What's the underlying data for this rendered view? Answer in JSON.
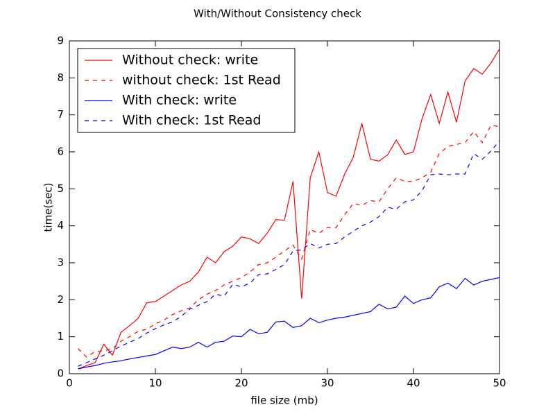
{
  "chart_data": {
    "type": "line",
    "title": "With/Without Consistency check",
    "xlabel": "file size (mb)",
    "ylabel": "time(sec)",
    "x": [
      1,
      2,
      3,
      4,
      5,
      6,
      7,
      8,
      9,
      10,
      11,
      12,
      13,
      14,
      15,
      16,
      17,
      18,
      19,
      20,
      21,
      22,
      23,
      24,
      25,
      26,
      27,
      28,
      29,
      30,
      31,
      32,
      33,
      34,
      35,
      36,
      37,
      38,
      39,
      40,
      41,
      42,
      43,
      44,
      45,
      46,
      47,
      48,
      49,
      50
    ],
    "xlim": [
      0,
      50
    ],
    "xticks": [
      0,
      10,
      20,
      30,
      40,
      50
    ],
    "ylim": [
      0,
      9
    ],
    "yticks": [
      0,
      1,
      2,
      3,
      4,
      5,
      6,
      7,
      8,
      9
    ],
    "legend": "upper left",
    "series": [
      {
        "name": "Without check: write",
        "color": "#ff0000",
        "style": "solid",
        "values": [
          0.13,
          0.22,
          0.3,
          0.8,
          0.5,
          1.12,
          1.3,
          1.5,
          1.92,
          1.95,
          2.1,
          2.25,
          2.4,
          2.5,
          2.75,
          3.15,
          3.0,
          3.3,
          3.45,
          3.7,
          3.65,
          3.52,
          3.8,
          4.17,
          4.15,
          5.2,
          2.03,
          5.3,
          6.0,
          4.9,
          4.8,
          5.4,
          5.85,
          6.77,
          5.8,
          5.75,
          5.92,
          6.32,
          5.93,
          6.0,
          6.9,
          7.55,
          6.77,
          7.62,
          6.8,
          7.92,
          8.25,
          8.1,
          8.4,
          8.78
        ]
      },
      {
        "name": "without check: 1st Read",
        "color": "#ff0000",
        "style": "dashed",
        "values": [
          0.68,
          0.45,
          0.6,
          0.62,
          0.68,
          0.88,
          1.0,
          1.15,
          1.2,
          1.35,
          1.45,
          1.6,
          1.7,
          1.78,
          2.0,
          2.15,
          2.25,
          2.4,
          2.5,
          2.6,
          2.75,
          2.95,
          3.0,
          3.15,
          3.32,
          3.48,
          3.1,
          3.9,
          3.8,
          3.95,
          3.95,
          4.3,
          4.6,
          4.55,
          4.68,
          4.65,
          5.0,
          5.3,
          5.2,
          5.2,
          5.3,
          5.45,
          5.95,
          6.15,
          6.2,
          6.25,
          6.55,
          6.25,
          6.72,
          6.68
        ]
      },
      {
        "name": "With check: write",
        "color": "#0000ff",
        "style": "solid",
        "values": [
          0.13,
          0.18,
          0.22,
          0.28,
          0.32,
          0.35,
          0.4,
          0.44,
          0.48,
          0.52,
          0.62,
          0.72,
          0.68,
          0.72,
          0.85,
          0.72,
          0.85,
          0.88,
          1.02,
          1.0,
          1.2,
          1.08,
          1.12,
          1.4,
          1.42,
          1.25,
          1.3,
          1.5,
          1.38,
          1.45,
          1.5,
          1.53,
          1.58,
          1.63,
          1.68,
          1.88,
          1.75,
          1.8,
          2.1,
          1.9,
          2.0,
          2.05,
          2.35,
          2.45,
          2.3,
          2.58,
          2.4,
          2.5,
          2.55,
          2.6
        ]
      },
      {
        "name": "With check: 1st Read",
        "color": "#0000ff",
        "style": "dashed",
        "values": [
          0.2,
          0.3,
          0.4,
          0.5,
          0.62,
          0.75,
          0.85,
          0.95,
          1.1,
          1.22,
          1.32,
          1.4,
          1.55,
          1.75,
          1.85,
          1.95,
          2.15,
          2.1,
          2.42,
          2.35,
          2.45,
          2.68,
          2.7,
          2.82,
          2.95,
          3.32,
          3.35,
          3.52,
          3.4,
          3.5,
          3.52,
          3.7,
          3.85,
          4.0,
          4.1,
          4.25,
          4.5,
          4.45,
          4.65,
          4.7,
          4.95,
          5.38,
          5.4,
          5.38,
          5.4,
          5.4,
          5.95,
          5.8,
          6.02,
          6.3
        ]
      }
    ]
  }
}
